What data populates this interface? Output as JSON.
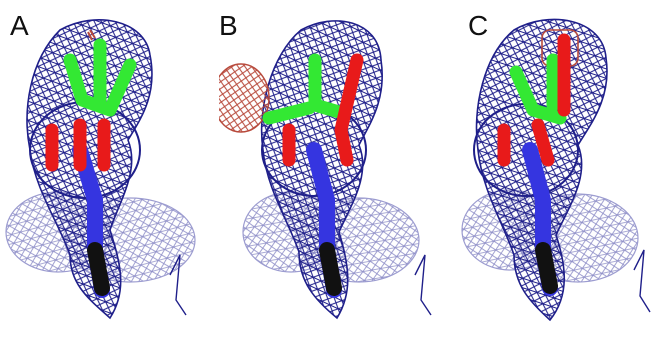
{
  "figure": {
    "panels": [
      {
        "label": "A"
      },
      {
        "label": "B"
      },
      {
        "label": "C"
      }
    ],
    "colors": {
      "mesh": "#1f1f8a",
      "mesh_light": "#7f7fbf",
      "mesh_red": "#b84a3c",
      "stick_green": "#33e833",
      "stick_red": "#e81a1a",
      "stick_blue": "#3535e0",
      "stick_dark": "#111111"
    }
  }
}
